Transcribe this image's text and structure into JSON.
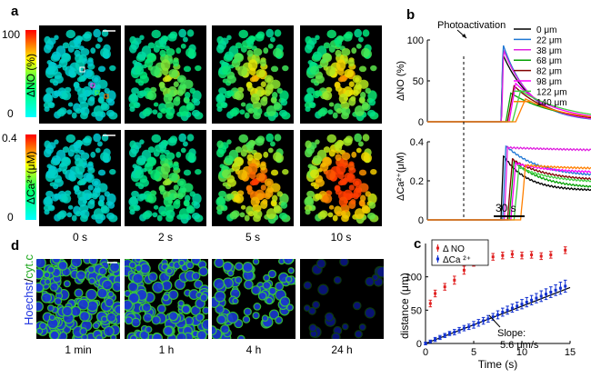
{
  "panels": {
    "a": {
      "label": "a",
      "no_colorbar": {
        "max": "100",
        "min": "0",
        "label": "ΔNO (%)"
      },
      "ca_colorbar": {
        "max": "0.4",
        "min": "0",
        "label": "ΔCa²⁺(μM)"
      },
      "times": [
        "0 s",
        "2 s",
        "5 s",
        "10 s"
      ],
      "no_intensity": [
        0.1,
        0.35,
        0.45,
        0.5
      ],
      "ca_intensity": [
        0.1,
        0.3,
        0.65,
        0.85
      ]
    },
    "b": {
      "label": "b",
      "annotation": "Photoactivation",
      "scalebar": "30 s"
    },
    "c": {
      "label": "c",
      "slope_label": "Slope:",
      "slope_value": "5.6 μm/s"
    },
    "d": {
      "label": "d",
      "ylabel_hoechst": "Hoechst",
      "ylabel_sep": "/",
      "ylabel_cytc": "cyt.c",
      "times": [
        "1 min",
        "1 h",
        "4 h",
        "24 h"
      ],
      "density": [
        1.0,
        0.85,
        0.45,
        0.15
      ]
    }
  },
  "chart_data": [
    {
      "id": "b-no",
      "type": "line",
      "ylabel": "ΔNO (%)",
      "ylim": [
        0,
        100
      ],
      "yticks": [
        "0",
        "50",
        "100"
      ],
      "xrange_s": [
        -45,
        55
      ],
      "legend": {
        "placement": "top-right",
        "entries": [
          "0 μm",
          "22 μm",
          "38 μm",
          "68 μm",
          "82 μm",
          "98 μm",
          "122 μm",
          "140 μm"
        ],
        "colors": [
          "#000000",
          "#1f77d4",
          "#e020e0",
          "#00a000",
          "#800000",
          "#ff00ff",
          "#40d040",
          "#ff8000"
        ]
      },
      "series": [
        {
          "name": "0 μm",
          "peak": 82,
          "delay": 0,
          "rise": 1.2,
          "tau": 18,
          "floor": 0
        },
        {
          "name": "22 μm",
          "peak": 95,
          "delay": 0.2,
          "rise": 1.0,
          "tau": 16,
          "floor": 0
        },
        {
          "name": "38 μm",
          "peak": 88,
          "delay": 0.4,
          "rise": 1.2,
          "tau": 17,
          "floor": 0
        },
        {
          "name": "68 μm",
          "peak": 35,
          "delay": 3,
          "rise": 3,
          "tau": 28,
          "floor": 0
        },
        {
          "name": "82 μm",
          "peak": 44,
          "delay": 4,
          "rise": 4,
          "tau": 22,
          "floor": 0
        },
        {
          "name": "98 μm",
          "peak": 47,
          "delay": 5,
          "rise": 4,
          "tau": 24,
          "floor": 0
        },
        {
          "name": "122 μm",
          "peak": 38,
          "delay": 7,
          "rise": 5,
          "tau": 30,
          "floor": 0
        },
        {
          "name": "140 μm",
          "peak": 28,
          "delay": 9,
          "rise": 6,
          "tau": 26,
          "floor": 0
        }
      ]
    },
    {
      "id": "b-ca",
      "type": "line",
      "ylabel": "ΔCa²⁺(μM)",
      "ylim": [
        0,
        0.4
      ],
      "yticks": [
        "0",
        "0.2",
        "0.4"
      ],
      "xrange_s": [
        -45,
        55
      ],
      "series": [
        {
          "name": "0 μm",
          "peak": 0.33,
          "delay": 0,
          "rise": 1.5,
          "tau": 14,
          "floor": 0.15
        },
        {
          "name": "22 μm",
          "peak": 0.38,
          "delay": 1,
          "rise": 2,
          "tau": 20,
          "floor": 0.22
        },
        {
          "name": "38 μm",
          "peak": 0.37,
          "delay": 2,
          "rise": 2,
          "tau": 60,
          "floor": 0.35
        },
        {
          "name": "68 μm",
          "peak": 0.3,
          "delay": 5,
          "rise": 3,
          "tau": 18,
          "floor": 0.16
        },
        {
          "name": "82 μm",
          "peak": 0.31,
          "delay": 4,
          "rise": 3,
          "tau": 20,
          "floor": 0.2
        },
        {
          "name": "98 μm",
          "peak": 0.29,
          "delay": 6,
          "rise": 3,
          "tau": 22,
          "floor": 0.24
        },
        {
          "name": "122 μm",
          "peak": 0.27,
          "delay": 8,
          "rise": 3,
          "tau": 20,
          "floor": 0.19
        },
        {
          "name": "140 μm",
          "peak": 0.28,
          "delay": 12,
          "rise": 3,
          "tau": 28,
          "floor": 0.26
        }
      ]
    },
    {
      "id": "c",
      "type": "scatter",
      "xlabel": "Time (s)",
      "ylabel": "distance (μm)",
      "xlim": [
        0,
        15
      ],
      "ylim": [
        0,
        150
      ],
      "xticks": [
        "0",
        "5",
        "10",
        "15"
      ],
      "yticks": [
        "0",
        "50",
        "100"
      ],
      "legend": {
        "placement": "top-left",
        "entries": [
          "Δ NO",
          "ΔCa ²⁺"
        ],
        "colors": [
          "#e02020",
          "#1030d0"
        ]
      },
      "series": [
        {
          "name": "Δ NO",
          "x": [
            0.5,
            1,
            2,
            3,
            4,
            5,
            6,
            7,
            8,
            9,
            10,
            11,
            12,
            13,
            14.5
          ],
          "y": [
            60,
            75,
            85,
            95,
            110,
            122,
            125,
            130,
            132,
            134,
            132,
            133,
            131,
            133,
            140
          ],
          "err": [
            5,
            5,
            5,
            6,
            6,
            6,
            5,
            5,
            5,
            5,
            5,
            5,
            5,
            5,
            5
          ]
        },
        {
          "name": "ΔCa ²⁺",
          "x": [
            0,
            0.5,
            1,
            1.5,
            2,
            2.5,
            3,
            3.5,
            4,
            4.5,
            5,
            5.5,
            6,
            6.5,
            7,
            7.5,
            8,
            8.5,
            9,
            9.5,
            10,
            10.5,
            11,
            11.5,
            12,
            12.5,
            13,
            13.5,
            14,
            14.5
          ],
          "y": [
            0,
            3,
            6,
            9,
            12,
            15,
            17,
            20,
            23,
            25,
            28,
            31,
            34,
            37,
            40,
            43,
            47,
            50,
            53,
            56,
            59,
            62,
            65,
            68,
            71,
            74,
            77,
            80,
            83,
            86
          ],
          "err": [
            2,
            2,
            3,
            3,
            3,
            3,
            4,
            4,
            4,
            4,
            5,
            5,
            5,
            5,
            5,
            6,
            6,
            6,
            6,
            6,
            7,
            7,
            7,
            7,
            8,
            8,
            8,
            8,
            9,
            9
          ]
        }
      ],
      "fit": {
        "slope": 5.6,
        "intercept": 0
      }
    }
  ]
}
